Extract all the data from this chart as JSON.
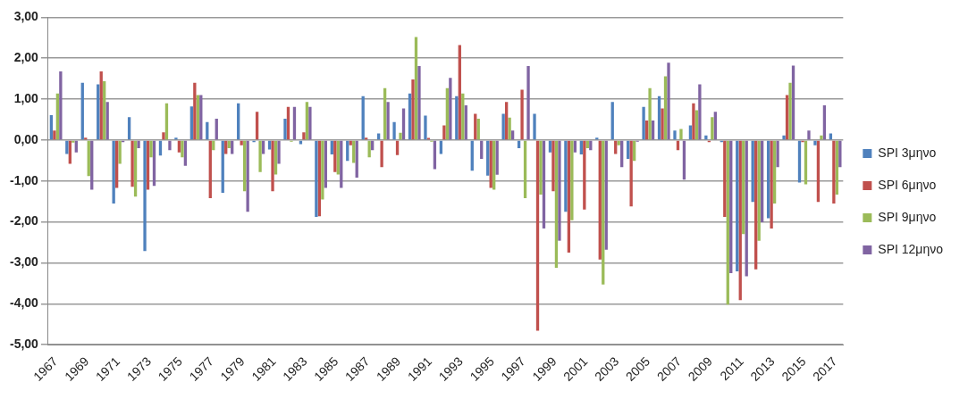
{
  "chart_data": {
    "type": "bar",
    "categories": [
      "1967",
      null,
      "1969",
      null,
      "1971",
      null,
      "1973",
      null,
      "1975",
      null,
      "1977",
      null,
      "1979",
      null,
      "1981",
      null,
      "1983",
      null,
      "1985",
      null,
      "1987",
      null,
      "1989",
      null,
      "1991",
      null,
      "1993",
      null,
      "1995",
      null,
      "1997",
      null,
      "1999",
      null,
      "2001",
      null,
      "2003",
      null,
      "2005",
      null,
      "2007",
      null,
      "2009",
      null,
      "2011",
      null,
      "2013",
      null,
      "2015",
      null,
      "2017"
    ],
    "series": [
      {
        "name": "SPI 3μηνο",
        "color": "#4f81bd",
        "values": [
          0.61,
          -0.34,
          1.4,
          1.36,
          -1.55,
          0.56,
          -2.71,
          -0.38,
          0.06,
          0.82,
          0.44,
          -1.29,
          0.9,
          -0.05,
          -0.23,
          0.52,
          -0.1,
          -1.88,
          -0.35,
          -0.51,
          1.07,
          0.16,
          0.44,
          1.14,
          0.6,
          -0.34,
          1.07,
          -0.75,
          -0.87,
          0.64,
          -0.2,
          0.64,
          -0.3,
          -1.75,
          -0.35,
          0.06,
          0.93,
          -0.46,
          0.81,
          1.07,
          0.23,
          0.36,
          0.11,
          -0.05,
          -3.21,
          -1.51,
          -1.91,
          0.11,
          -1.04,
          -0.13,
          0.16
        ]
      },
      {
        "name": "SPI 6μηνο",
        "color": "#c0504d",
        "values": [
          0.23,
          -0.58,
          0.06,
          1.68,
          -1.17,
          -1.14,
          -1.21,
          0.19,
          -0.3,
          1.4,
          -1.42,
          -0.34,
          -0.13,
          0.69,
          -1.25,
          0.81,
          0.19,
          -1.86,
          -0.78,
          -0.13,
          0.06,
          -0.66,
          -0.37,
          1.48,
          0.05,
          0.36,
          2.32,
          0.64,
          -1.17,
          0.93,
          1.23,
          -4.66,
          -1.25,
          -2.75,
          -1.7,
          -2.92,
          -0.34,
          -1.62,
          0.48,
          0.77,
          -0.25,
          0.9,
          -0.05,
          -1.88,
          -3.91,
          -3.16,
          -2.16,
          1.1,
          -0.05,
          -1.51,
          -1.55
        ]
      },
      {
        "name": "SPI 9μηνο",
        "color": "#9bbb59",
        "values": [
          1.14,
          -0.06,
          -0.88,
          1.44,
          -0.58,
          -1.38,
          -0.42,
          0.9,
          -0.42,
          1.1,
          -0.25,
          -0.2,
          -1.25,
          -0.78,
          -0.84,
          -0.04,
          0.93,
          -1.45,
          -0.84,
          -0.56,
          -0.42,
          1.27,
          0.18,
          2.52,
          -0.04,
          1.27,
          1.14,
          0.52,
          -1.21,
          0.55,
          -1.42,
          -1.33,
          -3.12,
          -1.96,
          -0.2,
          -3.53,
          -0.13,
          -0.51,
          1.27,
          1.56,
          0.27,
          0.73,
          0.56,
          -4.02,
          -2.3,
          -2.46,
          -1.55,
          1.4,
          -1.08,
          0.11,
          -1.33
        ]
      },
      {
        "name": "SPI 12μηνο",
        "color": "#8064a2",
        "values": [
          1.68,
          -0.3,
          -1.21,
          0.93,
          -0.05,
          -0.2,
          -1.12,
          -0.25,
          -0.63,
          1.1,
          0.52,
          -0.34,
          -1.75,
          -0.34,
          -0.58,
          0.81,
          0.81,
          -1.17,
          -1.17,
          -0.92,
          -0.25,
          0.93,
          0.77,
          1.81,
          -0.71,
          1.52,
          0.85,
          -0.46,
          -0.85,
          0.23,
          1.81,
          -2.16,
          -2.46,
          -0.3,
          -0.25,
          -2.68,
          -0.66,
          -0.04,
          0.48,
          1.89,
          -0.97,
          1.36,
          0.69,
          -3.25,
          -3.33,
          -2.01,
          -0.66,
          1.82,
          0.23,
          0.85,
          -0.66
        ]
      }
    ],
    "ylim": [
      -5,
      3
    ],
    "yticks": [
      {
        "value": -5,
        "label": "-5,00"
      },
      {
        "value": -4,
        "label": "-4,00"
      },
      {
        "value": -3,
        "label": "-3,00"
      },
      {
        "value": -2,
        "label": "-2,00"
      },
      {
        "value": -1,
        "label": "-1,00"
      },
      {
        "value": 0,
        "label": "0,00"
      },
      {
        "value": 1,
        "label": "1,00"
      },
      {
        "value": 2,
        "label": "2,00"
      },
      {
        "value": 3,
        "label": "3,00"
      }
    ],
    "grid": "y",
    "legend": "right"
  }
}
